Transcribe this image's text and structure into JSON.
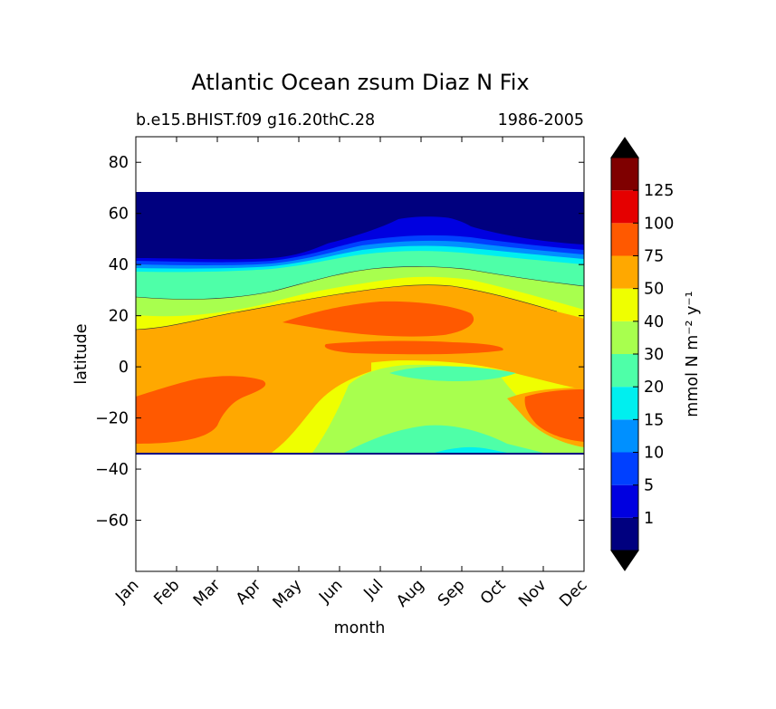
{
  "chart_data": {
    "type": "contour",
    "title": "Atlantic Ocean zsum Diaz N Fix",
    "subtitle_left": "b.e15.BHIST.f09 g16.20thC.28",
    "subtitle_right": "1986-2005",
    "xlabel": "month",
    "ylabel": "latitude",
    "x_categories": [
      "Jan",
      "Feb",
      "Mar",
      "Apr",
      "May",
      "Jun",
      "Jul",
      "Aug",
      "Sep",
      "Oct",
      "Nov",
      "Dec"
    ],
    "ylim": [
      -80,
      90
    ],
    "yticks": [
      80,
      60,
      40,
      20,
      0,
      -20,
      -40,
      -60
    ],
    "ytick_labels": [
      "80",
      "60",
      "40",
      "20",
      "0",
      "−20",
      "−40",
      "−60"
    ],
    "data_lat_range": [
      -34,
      69
    ],
    "colorbar": {
      "label": "mmol N m⁻² y⁻¹",
      "levels": [
        1,
        5,
        10,
        15,
        20,
        30,
        40,
        50,
        75,
        100,
        125
      ],
      "level_labels": [
        "1",
        "5",
        "10",
        "15",
        "20",
        "30",
        "40",
        "50",
        "75",
        "100",
        "125"
      ],
      "colors": [
        "#00007f",
        "#0000e0",
        "#0040ff",
        "#0090ff",
        "#00efef",
        "#4effa8",
        "#a8ff4e",
        "#efff00",
        "#ffa800",
        "#ff5900",
        "#e50000",
        "#7f0000"
      ],
      "extend": "both",
      "extend_low_color": "#000000",
      "extend_high_color": "#000000"
    },
    "regions": [
      {
        "band_index": 0,
        "level": "<1",
        "description": "high latitudes north of ~40N, plus southern edge"
      },
      {
        "band_index": 1,
        "level": "1-5",
        "description": "thin band near 40-55N"
      },
      {
        "band_index": 6,
        "level": "30-40",
        "description": "mid-latitude bands near 30N and 25S"
      },
      {
        "band_index": 7,
        "level": "40-50",
        "description": "bands near 35N and subtropical south"
      },
      {
        "band_index": 8,
        "level": "50-75",
        "description": "broad tropical region"
      },
      {
        "band_index": 9,
        "level": "75-100",
        "description": "Jan-Mar southern tropics and Jul-Sep northern tropics"
      }
    ]
  }
}
